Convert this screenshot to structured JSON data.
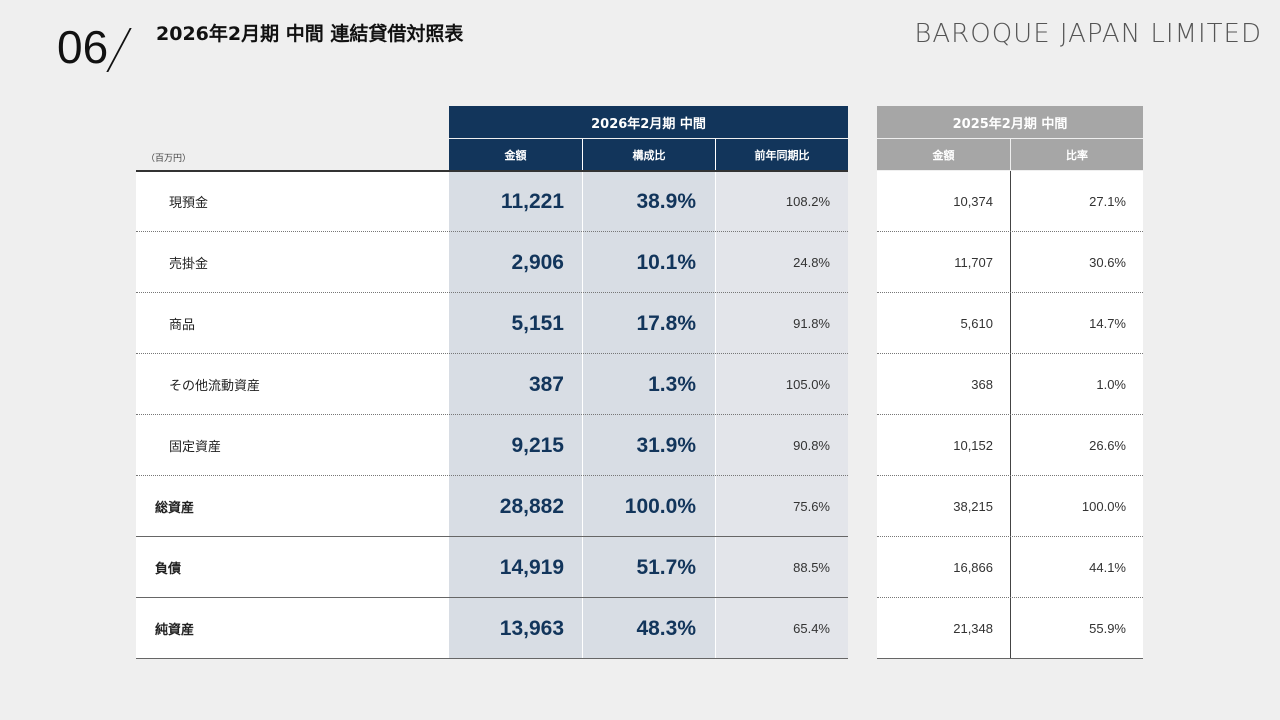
{
  "header": {
    "page_number": "06",
    "title": "2026年2月期 中間 連結貸借対照表",
    "brand": "BAROQUE JAPAN LIMITED"
  },
  "table": {
    "unit": "（百万円）",
    "current_period": {
      "label": "2026年2月期 中間",
      "columns": [
        "金額",
        "構成比",
        "前年同期比"
      ]
    },
    "prior_period": {
      "label": "2025年2月期 中間",
      "columns": [
        "金額",
        "比率"
      ]
    },
    "rows": [
      {
        "label": "現預金",
        "amount": "11,221",
        "ratio": "38.9%",
        "yoy": "108.2%",
        "prev_amount": "10,374",
        "prev_ratio": "27.1%"
      },
      {
        "label": "売掛金",
        "amount": "2,906",
        "ratio": "10.1%",
        "yoy": "24.8%",
        "prev_amount": "11,707",
        "prev_ratio": "30.6%"
      },
      {
        "label": "商品",
        "amount": "5,151",
        "ratio": "17.8%",
        "yoy": "91.8%",
        "prev_amount": "5,610",
        "prev_ratio": "14.7%"
      },
      {
        "label": "その他流動資産",
        "amount": "387",
        "ratio": "1.3%",
        "yoy": "105.0%",
        "prev_amount": "368",
        "prev_ratio": "1.0%"
      },
      {
        "label": "固定資産",
        "amount": "9,215",
        "ratio": "31.9%",
        "yoy": "90.8%",
        "prev_amount": "10,152",
        "prev_ratio": "26.6%"
      },
      {
        "label": "総資産",
        "amount": "28,882",
        "ratio": "100.0%",
        "yoy": "75.6%",
        "prev_amount": "38,215",
        "prev_ratio": "100.0%"
      },
      {
        "label": "負債",
        "amount": "14,919",
        "ratio": "51.7%",
        "yoy": "88.5%",
        "prev_amount": "16,866",
        "prev_ratio": "44.1%"
      },
      {
        "label": "純資産",
        "amount": "13,963",
        "ratio": "48.3%",
        "yoy": "65.4%",
        "prev_amount": "21,348",
        "prev_ratio": "55.9%"
      }
    ]
  }
}
